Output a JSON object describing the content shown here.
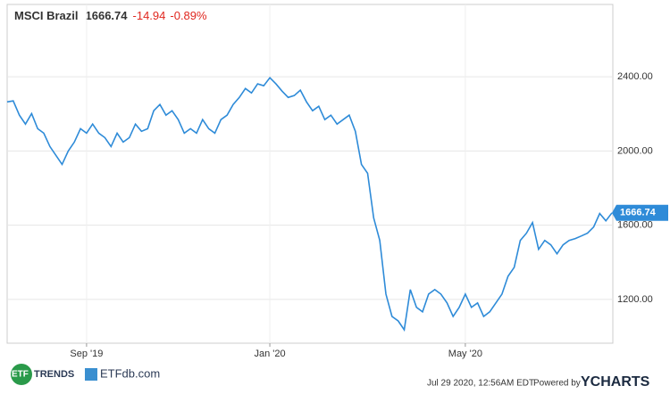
{
  "chart_data": {
    "type": "line",
    "title": "MSCI Brazil",
    "change": "-14.94",
    "change_percent": "-0.89%",
    "categories": [
      null,
      null,
      null,
      null,
      null,
      null,
      null,
      null,
      null,
      null,
      null,
      null,
      null,
      "Sep '19",
      null,
      null,
      null,
      null,
      null,
      null,
      null,
      null,
      null,
      null,
      null,
      null,
      null,
      null,
      null,
      null,
      null,
      null,
      null,
      null,
      null,
      null,
      null,
      null,
      null,
      null,
      null,
      null,
      null,
      "Jan '20",
      null,
      null,
      null,
      null,
      null,
      null,
      null,
      null,
      null,
      null,
      null,
      null,
      null,
      null,
      null,
      null,
      null,
      null,
      null,
      null,
      null,
      null,
      null,
      null,
      null,
      null,
      null,
      null,
      null,
      null,
      null,
      "May '20",
      null,
      null,
      null,
      null,
      null,
      null,
      null,
      null,
      null,
      null,
      null,
      null,
      null,
      null,
      null,
      null,
      null,
      null,
      null,
      null,
      null,
      null,
      null,
      null
    ],
    "series": [
      {
        "name": "MSCI Brazil",
        "color": "#2e8bd8",
        "values": [
          2265,
          2270,
          2193,
          2145,
          2202,
          2120,
          2096,
          2024,
          1976,
          1928,
          2000,
          2048,
          2120,
          2096,
          2145,
          2096,
          2072,
          2024,
          2096,
          2048,
          2072,
          2145,
          2106,
          2120,
          2217,
          2251,
          2193,
          2217,
          2169,
          2096,
          2120,
          2096,
          2169,
          2120,
          2096,
          2169,
          2193,
          2251,
          2289,
          2337,
          2313,
          2362,
          2352,
          2395,
          2362,
          2323,
          2289,
          2299,
          2328,
          2265,
          2217,
          2241,
          2169,
          2193,
          2145,
          2169,
          2193,
          2106,
          1928,
          1880,
          1639,
          1518,
          1229,
          1108,
          1084,
          1036,
          1253,
          1157,
          1133,
          1229,
          1253,
          1229,
          1181,
          1108,
          1157,
          1229,
          1157,
          1181,
          1108,
          1133,
          1181,
          1229,
          1325,
          1373,
          1518,
          1557,
          1614,
          1470,
          1518,
          1494,
          1446,
          1494,
          1518,
          1528,
          1542,
          1557,
          1590,
          1663,
          1624,
          1666.74
        ]
      }
    ],
    "ylim": [
      964,
      2790
    ],
    "yticks": [
      {
        "value": 1200,
        "label": "1200.00"
      },
      {
        "value": 1600,
        "label": "1600.00"
      },
      {
        "value": 2000,
        "label": "2000.00"
      },
      {
        "value": 2400,
        "label": "2400.00"
      }
    ],
    "grid": true
  },
  "footer": {
    "timestamp": "Jul 29 2020, 12:56AM EDT.",
    "powered_by": "Powered by",
    "brand": "YCHARTS",
    "logo_left": "ETF",
    "logo_left_text": "TRENDS",
    "logo_right": "ETFdb.com"
  }
}
